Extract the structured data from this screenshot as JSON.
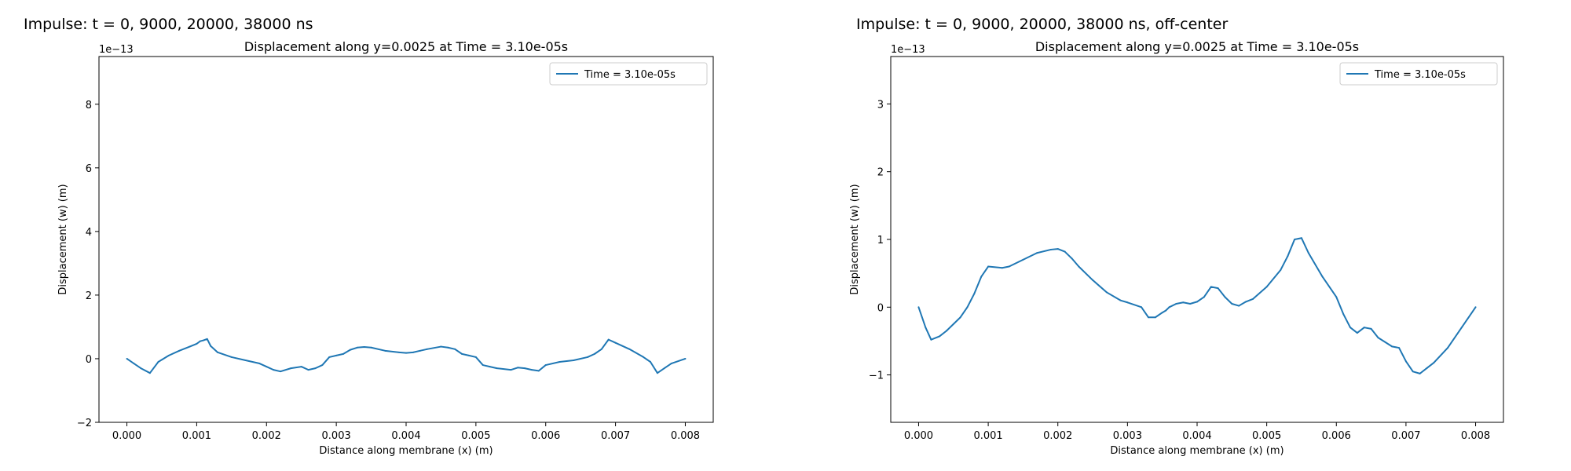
{
  "panels": [
    {
      "title": "Impulse: t = 0, 9000, 20000, 38000 ns"
    },
    {
      "title": "Impulse: t = 0, 9000, 20000, 38000 ns, off-center"
    }
  ],
  "chart_data": [
    {
      "type": "line",
      "title": "Displacement along y=0.0025 at Time = 3.10e-05s",
      "xlabel": "Distance along membrane (x) (m)",
      "ylabel": "Displacement (w) (m)",
      "y_scale_label": "1e−13",
      "xlim": [
        -0.0004,
        0.0084
      ],
      "ylim": [
        -2,
        9.5
      ],
      "xticks": [
        0.0,
        0.001,
        0.002,
        0.003,
        0.004,
        0.005,
        0.006,
        0.007,
        0.008
      ],
      "xtick_labels": [
        "0.000",
        "0.001",
        "0.002",
        "0.003",
        "0.004",
        "0.005",
        "0.006",
        "0.007",
        "0.008"
      ],
      "yticks": [
        -2,
        0,
        2,
        4,
        6,
        8
      ],
      "ytick_labels": [
        "−2",
        "0",
        "2",
        "4",
        "6",
        "8"
      ],
      "legend_position": "top-right",
      "grid": false,
      "series": [
        {
          "name": "Time = 3.10e-05s",
          "color": "#1f77b4",
          "x": [
            0,
            0.0001,
            0.0002,
            0.00033,
            0.00045,
            0.0006,
            0.00075,
            0.0009,
            0.001,
            0.00105,
            0.0011,
            0.00115,
            0.0012,
            0.0013,
            0.0015,
            0.0017,
            0.0019,
            0.002,
            0.0021,
            0.0022,
            0.00235,
            0.0025,
            0.0026,
            0.0027,
            0.0028,
            0.0029,
            0.003,
            0.0031,
            0.0032,
            0.0033,
            0.0034,
            0.0035,
            0.0037,
            0.0039,
            0.004,
            0.0041,
            0.0042,
            0.0043,
            0.0045,
            0.0046,
            0.0047,
            0.0048,
            0.0049,
            0.005,
            0.0051,
            0.0052,
            0.0053,
            0.0055,
            0.0056,
            0.0057,
            0.0058,
            0.0059,
            0.006,
            0.0062,
            0.0064,
            0.0066,
            0.0067,
            0.0068,
            0.00685,
            0.0069,
            0.007,
            0.0072,
            0.0074,
            0.0075,
            0.0076,
            0.0077,
            0.0078,
            0.008
          ],
          "values": [
            0,
            -0.15,
            -0.3,
            -0.45,
            -0.1,
            0.1,
            0.25,
            0.38,
            0.47,
            0.55,
            0.58,
            0.62,
            0.4,
            0.2,
            0.05,
            -0.05,
            -0.15,
            -0.25,
            -0.35,
            -0.4,
            -0.3,
            -0.25,
            -0.35,
            -0.3,
            -0.2,
            0.05,
            0.1,
            0.15,
            0.28,
            0.35,
            0.37,
            0.35,
            0.25,
            0.2,
            0.18,
            0.2,
            0.25,
            0.3,
            0.38,
            0.35,
            0.3,
            0.15,
            0.1,
            0.05,
            -0.2,
            -0.25,
            -0.3,
            -0.35,
            -0.28,
            -0.3,
            -0.35,
            -0.38,
            -0.2,
            -0.1,
            -0.05,
            0.05,
            0.15,
            0.3,
            0.45,
            0.6,
            0.5,
            0.3,
            0.05,
            -0.1,
            -0.45,
            -0.3,
            -0.15,
            0
          ]
        }
      ]
    },
    {
      "type": "line",
      "title": "Displacement along y=0.0025 at Time = 3.10e-05s",
      "xlabel": "Distance along membrane (x) (m)",
      "ylabel": "Displacement (w) (m)",
      "y_scale_label": "1e−13",
      "xlim": [
        -0.0004,
        0.0084
      ],
      "ylim": [
        -1.7,
        3.7
      ],
      "xticks": [
        0.0,
        0.001,
        0.002,
        0.003,
        0.004,
        0.005,
        0.006,
        0.007,
        0.008
      ],
      "xtick_labels": [
        "0.000",
        "0.001",
        "0.002",
        "0.003",
        "0.004",
        "0.005",
        "0.006",
        "0.007",
        "0.008"
      ],
      "yticks": [
        -1,
        0,
        1,
        2,
        3
      ],
      "ytick_labels": [
        "−1",
        "0",
        "1",
        "2",
        "3"
      ],
      "legend_position": "top-right",
      "grid": false,
      "series": [
        {
          "name": "Time = 3.10e-05s",
          "color": "#1f77b4",
          "x": [
            0,
            0.0001,
            0.00018,
            0.0003,
            0.0004,
            0.0005,
            0.0006,
            0.0007,
            0.0008,
            0.0009,
            0.001,
            0.0012,
            0.0013,
            0.0015,
            0.0017,
            0.0019,
            0.002,
            0.0021,
            0.0022,
            0.0023,
            0.0025,
            0.0027,
            0.0029,
            0.003,
            0.0032,
            0.0033,
            0.0034,
            0.0035,
            0.00355,
            0.0036,
            0.0037,
            0.0038,
            0.0039,
            0.004,
            0.0041,
            0.0042,
            0.0043,
            0.0044,
            0.0045,
            0.0046,
            0.0047,
            0.0048,
            0.005,
            0.0052,
            0.0053,
            0.0054,
            0.0055,
            0.0056,
            0.0058,
            0.006,
            0.0061,
            0.0062,
            0.0063,
            0.0064,
            0.0065,
            0.0066,
            0.0068,
            0.0069,
            0.007,
            0.0071,
            0.0072,
            0.0073,
            0.0074,
            0.0076,
            0.0078,
            0.008
          ],
          "values": [
            0,
            -0.3,
            -0.48,
            -0.43,
            -0.35,
            -0.25,
            -0.15,
            0.0,
            0.2,
            0.45,
            0.6,
            0.58,
            0.6,
            0.7,
            0.8,
            0.85,
            0.86,
            0.82,
            0.72,
            0.6,
            0.4,
            0.22,
            0.1,
            0.07,
            0.0,
            -0.15,
            -0.15,
            -0.08,
            -0.05,
            0.0,
            0.05,
            0.07,
            0.05,
            0.08,
            0.15,
            0.3,
            0.28,
            0.15,
            0.05,
            0.02,
            0.08,
            0.12,
            0.3,
            0.55,
            0.75,
            1.0,
            1.02,
            0.8,
            0.45,
            0.15,
            -0.1,
            -0.3,
            -0.38,
            -0.3,
            -0.32,
            -0.45,
            -0.58,
            -0.6,
            -0.8,
            -0.95,
            -0.98,
            -0.9,
            -0.82,
            -0.6,
            -0.3,
            0
          ]
        }
      ]
    }
  ]
}
